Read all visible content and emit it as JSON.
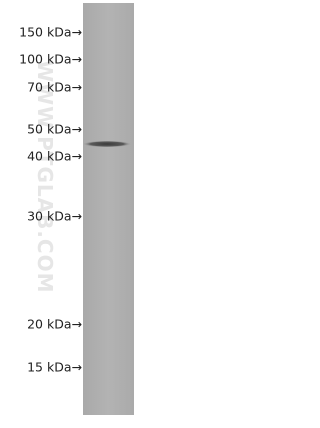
{
  "markers": [
    "150 kDa→",
    "100 kDa→",
    "70 kDa→",
    "50 kDa→",
    "40 kDa→",
    "30 kDa→",
    "20 kDa→",
    "15 kDa→"
  ],
  "watermark": "WWW.PTGLAB.COM"
}
